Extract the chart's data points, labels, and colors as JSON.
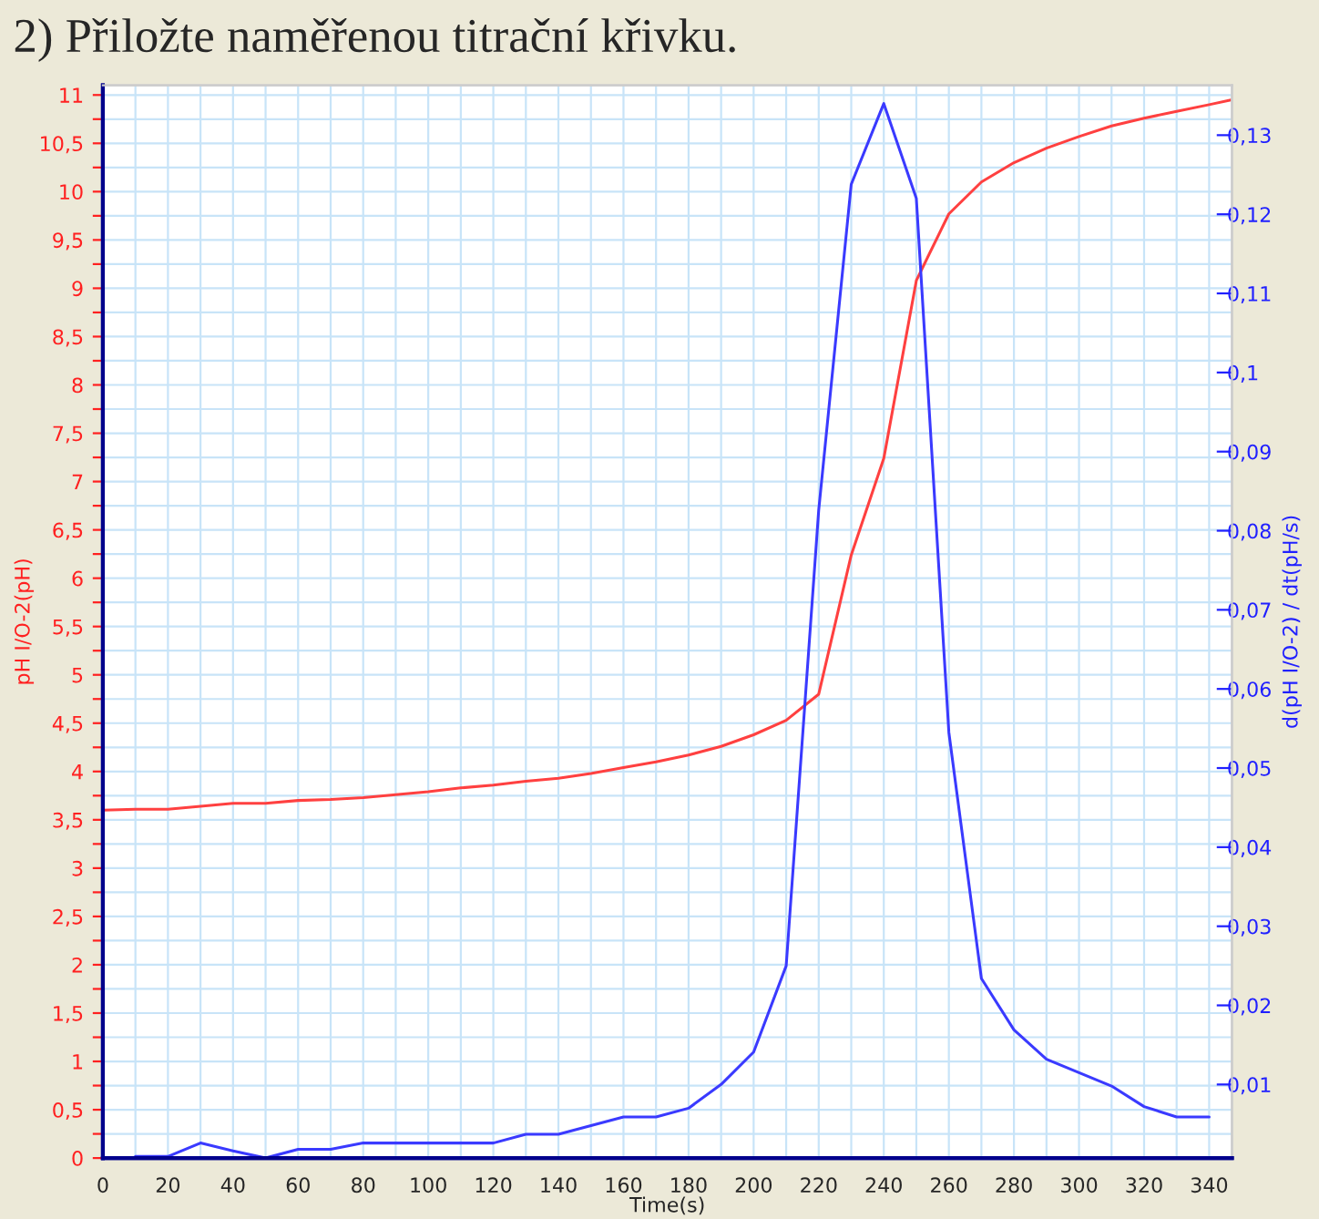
{
  "chart_data": {
    "type": "line",
    "title": "2) Přiložte naměřenou titrační křivku.",
    "xlabel": "Time(s)",
    "ylabel": "pH I/O-2(pH)",
    "y2label": "d(pH I/O-2) / dt(pH/s)",
    "xlim": [
      0,
      347
    ],
    "ylim": [
      0,
      11.1
    ],
    "y2lim": [
      0.0007,
      0.1363
    ],
    "xticks": [
      0,
      {
        "value": 10,
        "label": null
      },
      20,
      {
        "value": 30,
        "label": null
      },
      40,
      {
        "value": 50,
        "label": null
      },
      60,
      {
        "value": 70,
        "label": null
      },
      80,
      {
        "value": 90,
        "label": null
      },
      100,
      {
        "value": 110,
        "label": null
      },
      120,
      {
        "value": 130,
        "label": null
      },
      140,
      {
        "value": 150,
        "label": null
      },
      160,
      {
        "value": 170,
        "label": null
      },
      180,
      {
        "value": 190,
        "label": null
      },
      200,
      {
        "value": 210,
        "label": null
      },
      220,
      {
        "value": 230,
        "label": null
      },
      240,
      {
        "value": 250,
        "label": null
      },
      260,
      {
        "value": 270,
        "label": null
      },
      280,
      {
        "value": 290,
        "label": null
      },
      300,
      {
        "value": 310,
        "label": null
      },
      320,
      {
        "value": 330,
        "label": null
      },
      340
    ],
    "yticks": [
      0,
      {
        "value": 0.25,
        "label": null
      },
      {
        "value": 0.5,
        "label": "0,5"
      },
      {
        "value": 0.75,
        "label": null
      },
      1,
      {
        "value": 1.25,
        "label": null
      },
      {
        "value": 1.5,
        "label": "1,5"
      },
      {
        "value": 1.75,
        "label": null
      },
      2,
      {
        "value": 2.25,
        "label": null
      },
      {
        "value": 2.5,
        "label": "2,5"
      },
      {
        "value": 2.75,
        "label": null
      },
      3,
      {
        "value": 3.25,
        "label": null
      },
      {
        "value": 3.5,
        "label": "3,5"
      },
      {
        "value": 3.75,
        "label": null
      },
      4,
      {
        "value": 4.25,
        "label": null
      },
      {
        "value": 4.5,
        "label": "4,5"
      },
      {
        "value": 4.75,
        "label": null
      },
      5,
      {
        "value": 5.25,
        "label": null
      },
      {
        "value": 5.5,
        "label": "5,5"
      },
      {
        "value": 5.75,
        "label": null
      },
      6,
      {
        "value": 6.25,
        "label": null
      },
      {
        "value": 6.5,
        "label": "6,5"
      },
      {
        "value": 6.75,
        "label": null
      },
      7,
      {
        "value": 7.25,
        "label": null
      },
      {
        "value": 7.5,
        "label": "7,5"
      },
      {
        "value": 7.75,
        "label": null
      },
      8,
      {
        "value": 8.25,
        "label": null
      },
      {
        "value": 8.5,
        "label": "8,5"
      },
      {
        "value": 8.75,
        "label": null
      },
      9,
      {
        "value": 9.25,
        "label": null
      },
      {
        "value": 9.5,
        "label": "9,5"
      },
      {
        "value": 9.75,
        "label": null
      },
      10,
      {
        "value": 10.25,
        "label": null
      },
      {
        "value": 10.5,
        "label": "10,5"
      },
      {
        "value": 10.75,
        "label": null
      },
      11
    ],
    "y2ticks": [
      {
        "value": 0.01,
        "label": "0,01"
      },
      {
        "value": 0.02,
        "label": "0,02"
      },
      {
        "value": 0.03,
        "label": "0,03"
      },
      {
        "value": 0.04,
        "label": "0,04"
      },
      {
        "value": 0.05,
        "label": "0,05"
      },
      {
        "value": 0.06,
        "label": "0,06"
      },
      {
        "value": 0.07,
        "label": "0,07"
      },
      {
        "value": 0.08,
        "label": "0,08"
      },
      {
        "value": 0.09,
        "label": "0,09"
      },
      {
        "value": 0.1,
        "label": "0,1"
      },
      {
        "value": 0.11,
        "label": "0,11"
      },
      {
        "value": 0.12,
        "label": "0,12"
      },
      {
        "value": 0.13,
        "label": "0,13"
      }
    ],
    "grid": true,
    "series": [
      {
        "color": "#ff4040",
        "x": [
          0,
          10,
          20,
          30,
          40,
          50,
          60,
          70,
          80,
          90,
          100,
          110,
          120,
          130,
          140,
          150,
          160,
          170,
          180,
          190,
          200,
          210,
          220,
          230,
          240,
          250,
          260,
          270,
          280,
          290,
          300,
          310,
          320,
          330,
          340,
          347
        ],
        "values": [
          3.6,
          3.61,
          3.61,
          3.64,
          3.67,
          3.67,
          3.7,
          3.71,
          3.73,
          3.76,
          3.79,
          3.83,
          3.86,
          3.9,
          3.93,
          3.98,
          4.04,
          4.1,
          4.17,
          4.26,
          4.38,
          4.53,
          4.8,
          6.24,
          7.24,
          9.08,
          9.77,
          10.1,
          10.3,
          10.45,
          10.57,
          10.68,
          10.76,
          10.83,
          10.9,
          10.95
        ]
      },
      {
        "color": "#3a3aff",
        "axis": "y2",
        "x": [
          10,
          20,
          30,
          40,
          50,
          60,
          70,
          80,
          90,
          100,
          110,
          120,
          130,
          140,
          150,
          160,
          170,
          180,
          190,
          200,
          210,
          220,
          230,
          240,
          250,
          260,
          270,
          280,
          290,
          300,
          310,
          320,
          330,
          340
        ],
        "values": [
          0.0009,
          0.0009,
          0.0026,
          0.0016,
          0.0007,
          0.0018,
          0.0018,
          0.0026,
          0.0026,
          0.0026,
          0.0026,
          0.0026,
          0.0037,
          0.0037,
          0.0048,
          0.0059,
          0.0059,
          0.007,
          0.01,
          0.0141,
          0.025,
          0.0826,
          0.1238,
          0.134,
          0.122,
          0.0545,
          0.0234,
          0.0169,
          0.0132,
          0.0115,
          0.0098,
          0.0072,
          0.0059,
          0.0059
        ]
      }
    ]
  }
}
